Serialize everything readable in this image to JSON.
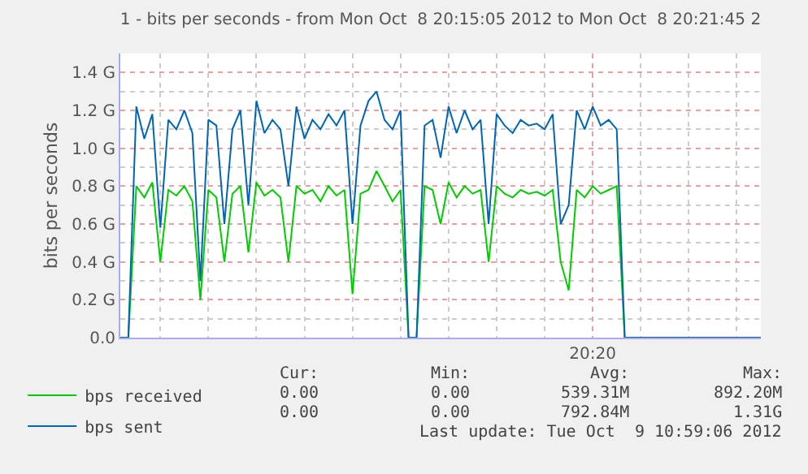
{
  "chart_data": {
    "type": "line",
    "title": "1 - bits per seconds - from Mon Oct  8 20:15:05 2012 to Mon Oct  8 20:21:45 2",
    "ylabel": "bits per seconds",
    "categories": [
      null,
      null,
      null,
      null,
      null,
      null,
      null,
      null,
      null,
      null,
      null,
      null,
      null,
      null,
      null,
      null,
      null,
      null,
      null,
      null,
      null,
      null,
      null,
      null,
      null,
      null,
      null,
      null,
      null,
      null,
      null,
      null,
      null,
      null,
      null,
      null,
      null,
      null,
      null,
      null,
      null,
      null,
      null,
      null,
      null,
      null,
      null,
      null,
      null,
      null,
      null,
      null,
      null,
      null,
      null,
      null,
      null,
      null,
      null,
      "20:20",
      null,
      null,
      null,
      null,
      null,
      null,
      null,
      null,
      null,
      null,
      null,
      null,
      null,
      null,
      null,
      null,
      null,
      null,
      null,
      null,
      null
    ],
    "series": [
      {
        "name": "bps received",
        "color": "#00cc00",
        "values": [
          0,
          0,
          0.8,
          0.74,
          0.82,
          0.4,
          0.78,
          0.75,
          0.8,
          0.72,
          0.2,
          0.78,
          0.74,
          0.4,
          0.76,
          0.8,
          0.45,
          0.82,
          0.75,
          0.78,
          0.74,
          0.4,
          0.8,
          0.76,
          0.78,
          0.72,
          0.8,
          0.75,
          0.78,
          0.23,
          0.76,
          0.78,
          0.88,
          0.8,
          0.72,
          0.78,
          0.0,
          0.0,
          0.8,
          0.78,
          0.6,
          0.82,
          0.74,
          0.8,
          0.76,
          0.78,
          0.4,
          0.8,
          0.76,
          0.74,
          0.78,
          0.76,
          0.77,
          0.75,
          0.78,
          0.4,
          0.25,
          0.78,
          0.74,
          0.8,
          0.76,
          0.78,
          0.8,
          0,
          0,
          0,
          null,
          null,
          null,
          null,
          null,
          null,
          null,
          null,
          null,
          null,
          null,
          null,
          null,
          null,
          null
        ]
      },
      {
        "name": "bps sent",
        "color": "#0066b3",
        "values": [
          0,
          0,
          1.22,
          1.05,
          1.18,
          0.58,
          1.15,
          1.1,
          1.2,
          1.08,
          0.3,
          1.15,
          1.12,
          0.6,
          1.1,
          1.2,
          0.7,
          1.25,
          1.08,
          1.15,
          1.1,
          0.8,
          1.22,
          1.05,
          1.15,
          1.1,
          1.18,
          1.12,
          1.2,
          0.6,
          1.12,
          1.25,
          1.3,
          1.15,
          1.1,
          1.2,
          0,
          0,
          1.12,
          1.15,
          0.95,
          1.22,
          1.08,
          1.2,
          1.1,
          1.15,
          0.6,
          1.18,
          1.12,
          1.08,
          1.15,
          1.12,
          1.13,
          1.1,
          1.18,
          0.6,
          0.7,
          1.2,
          1.1,
          1.22,
          1.12,
          1.15,
          1.1,
          0,
          0,
          0,
          0,
          0,
          0,
          0,
          0,
          0,
          0,
          0,
          0,
          0,
          0,
          0,
          0,
          0,
          0
        ]
      }
    ],
    "ylim": [
      0,
      1.5
    ],
    "yticks": [
      {
        "value": 0,
        "label": "0.0"
      },
      {
        "value": 0.2,
        "label": "0.2 G"
      },
      {
        "value": 0.4,
        "label": "0.4 G"
      },
      {
        "value": 0.6,
        "label": "0.6 G"
      },
      {
        "value": 0.8,
        "label": "0.8 G"
      },
      {
        "value": 1.0,
        "label": "1.0 G"
      },
      {
        "value": 1.2,
        "label": "1.2 G"
      },
      {
        "value": 1.4,
        "label": "1.4 G"
      }
    ],
    "grid": true,
    "legend": "bottom left",
    "annotations": [
      "Cur:",
      "Min:",
      "Avg:",
      "Max:",
      "0.00",
      "0.00",
      "539.31M",
      "892.20M",
      "0.00",
      "0.00",
      "792.84M",
      "1.31G",
      "Last update: Tue Oct  9 10:59:06 2012"
    ]
  }
}
